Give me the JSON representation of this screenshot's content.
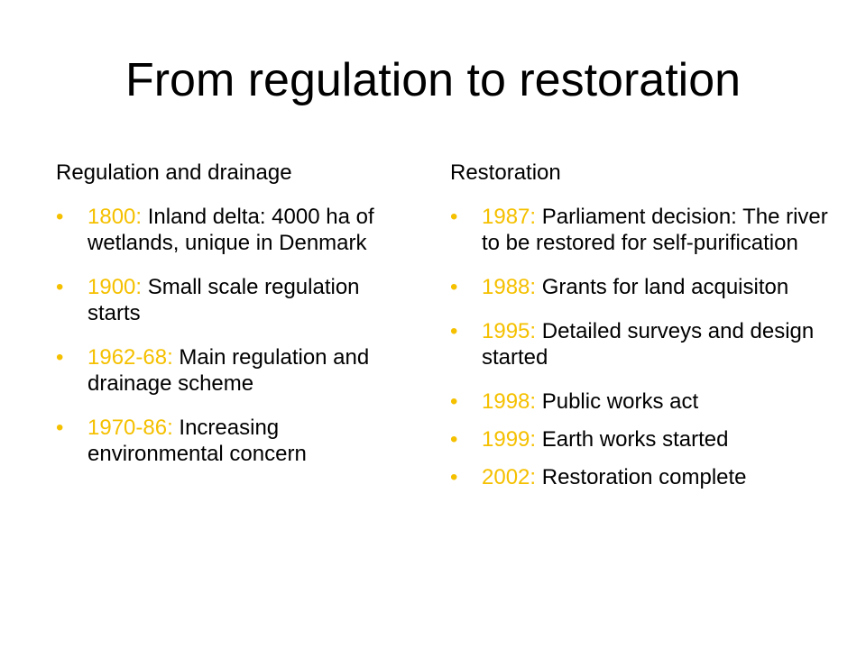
{
  "colors": {
    "accent": "#f5c000",
    "text": "#000000",
    "background": "#ffffff"
  },
  "title": "From regulation to restoration",
  "left": {
    "heading": "Regulation and drainage",
    "items": [
      {
        "year": "1800:",
        "text": " Inland delta: 4000 ha of wetlands, unique in Denmark"
      },
      {
        "year": "1900:",
        "text": " Small scale regulation starts"
      },
      {
        "year": "1962-68:",
        "text": " Main regulation and drainage scheme"
      },
      {
        "year": "1970-86:",
        "text": " Increasing environmental concern"
      }
    ]
  },
  "right": {
    "heading": "Restoration",
    "items": [
      {
        "year": "1987:",
        "text": " Parliament decision: The river to be restored for self-purification"
      },
      {
        "year": "1988:",
        "text": " Grants for land acquisiton"
      },
      {
        "year": "1995:",
        "text": " Detailed surveys and design started"
      },
      {
        "year": "1998:",
        "text": " Public works act"
      },
      {
        "year": "1999:",
        "text": " Earth works started"
      },
      {
        "year": "2002:",
        "text": " Restoration complete"
      }
    ]
  }
}
